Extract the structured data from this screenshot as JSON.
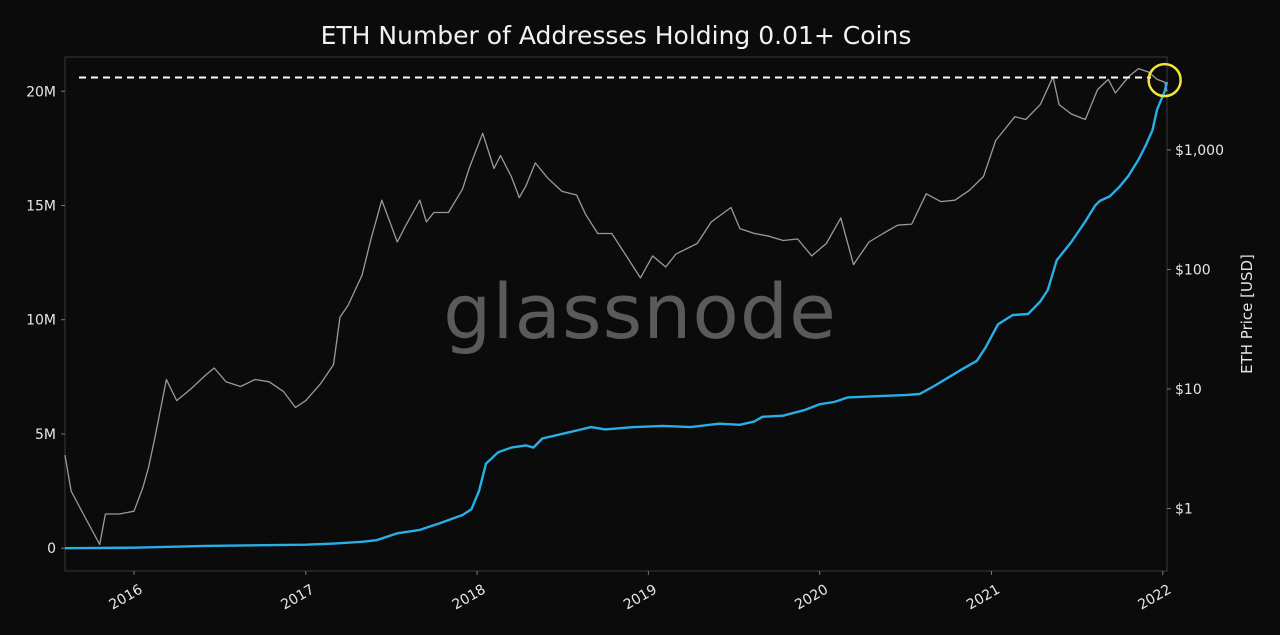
{
  "chart_data": {
    "type": "line",
    "title": "ETH Number of Addresses Holding 0.01+ Coins",
    "watermark": "glassnode",
    "x_ticks": [
      "2016",
      "2017",
      "2018",
      "2019",
      "2020",
      "2021",
      "2022"
    ],
    "x_range": [
      "2015-08-07",
      "2022-01-10"
    ],
    "y_left": {
      "ticks": [
        "0",
        "5M",
        "10M",
        "15M",
        "20M"
      ],
      "tick_values": [
        0,
        5000000,
        10000000,
        15000000,
        20000000
      ],
      "range": [
        -1000000,
        21500000
      ],
      "label": ""
    },
    "y_right": {
      "label": "ETH Price [USD]",
      "scale": "log",
      "ticks": [
        "$1",
        "$10",
        "$100",
        "$1,000"
      ],
      "tick_values": [
        1,
        10,
        100,
        1000
      ],
      "range": [
        0.3,
        6000
      ]
    },
    "reference_line": {
      "value": 20600000,
      "style": "dashed",
      "color": "#ffffff"
    },
    "highlight_circle": {
      "date": "2022-01-05",
      "color": "#f1e63a"
    },
    "series": [
      {
        "axis": "left",
        "color": "#2aaee6",
        "points": [
          [
            "2015-08-07",
            0
          ],
          [
            "2016-01-01",
            20000
          ],
          [
            "2016-06-01",
            100000
          ],
          [
            "2017-01-01",
            150000
          ],
          [
            "2017-03-01",
            200000
          ],
          [
            "2017-05-01",
            280000
          ],
          [
            "2017-06-01",
            350000
          ],
          [
            "2017-07-15",
            650000
          ],
          [
            "2017-09-01",
            800000
          ],
          [
            "2017-10-15",
            1100000
          ],
          [
            "2017-12-01",
            1450000
          ],
          [
            "2017-12-20",
            1700000
          ],
          [
            "2018-01-05",
            2500000
          ],
          [
            "2018-01-20",
            3700000
          ],
          [
            "2018-02-15",
            4200000
          ],
          [
            "2018-03-15",
            4400000
          ],
          [
            "2018-04-15",
            4500000
          ],
          [
            "2018-05-01",
            4400000
          ],
          [
            "2018-05-20",
            4800000
          ],
          [
            "2018-07-01",
            5000000
          ],
          [
            "2018-08-01",
            5150000
          ],
          [
            "2018-09-01",
            5300000
          ],
          [
            "2018-10-01",
            5200000
          ],
          [
            "2018-12-01",
            5300000
          ],
          [
            "2019-02-01",
            5350000
          ],
          [
            "2019-04-01",
            5300000
          ],
          [
            "2019-06-01",
            5450000
          ],
          [
            "2019-07-15",
            5400000
          ],
          [
            "2019-08-15",
            5550000
          ],
          [
            "2019-09-01",
            5750000
          ],
          [
            "2019-10-15",
            5800000
          ],
          [
            "2019-12-01",
            6050000
          ],
          [
            "2020-01-01",
            6300000
          ],
          [
            "2020-02-01",
            6400000
          ],
          [
            "2020-03-01",
            6600000
          ],
          [
            "2020-05-01",
            6650000
          ],
          [
            "2020-07-01",
            6700000
          ],
          [
            "2020-08-01",
            6750000
          ],
          [
            "2020-09-01",
            7100000
          ],
          [
            "2020-11-01",
            7850000
          ],
          [
            "2020-12-01",
            8200000
          ],
          [
            "2020-12-20",
            8800000
          ],
          [
            "2021-01-15",
            9800000
          ],
          [
            "2021-02-15",
            10200000
          ],
          [
            "2021-03-20",
            10250000
          ],
          [
            "2021-04-15",
            10800000
          ],
          [
            "2021-05-01",
            11300000
          ],
          [
            "2021-05-20",
            12600000
          ],
          [
            "2021-06-20",
            13400000
          ],
          [
            "2021-07-20",
            14300000
          ],
          [
            "2021-08-10",
            15000000
          ],
          [
            "2021-08-20",
            15200000
          ],
          [
            "2021-09-10",
            15400000
          ],
          [
            "2021-09-30",
            15800000
          ],
          [
            "2021-10-20",
            16300000
          ],
          [
            "2021-11-10",
            17000000
          ],
          [
            "2021-11-25",
            17600000
          ],
          [
            "2021-12-10",
            18300000
          ],
          [
            "2021-12-20",
            19200000
          ],
          [
            "2022-01-05",
            20000000
          ],
          [
            "2022-01-10",
            20400000
          ]
        ]
      },
      {
        "axis": "right",
        "color": "#9a9a9a",
        "points": [
          [
            "2015-08-07",
            2.8
          ],
          [
            "2015-08-20",
            1.4
          ],
          [
            "2015-09-15",
            0.9
          ],
          [
            "2015-10-20",
            0.5
          ],
          [
            "2015-11-01",
            0.9
          ],
          [
            "2015-12-01",
            0.9
          ],
          [
            "2016-01-01",
            0.95
          ],
          [
            "2016-01-20",
            1.5
          ],
          [
            "2016-02-01",
            2.2
          ],
          [
            "2016-02-15",
            4.0
          ],
          [
            "2016-03-10",
            12.0
          ],
          [
            "2016-04-01",
            8.0
          ],
          [
            "2016-05-01",
            10.0
          ],
          [
            "2016-06-01",
            13.0
          ],
          [
            "2016-06-20",
            15.0
          ],
          [
            "2016-07-15",
            11.5
          ],
          [
            "2016-08-15",
            10.5
          ],
          [
            "2016-09-15",
            12.0
          ],
          [
            "2016-10-15",
            11.5
          ],
          [
            "2016-11-15",
            9.5
          ],
          [
            "2016-12-10",
            7.0
          ],
          [
            "2017-01-01",
            8.0
          ],
          [
            "2017-02-01",
            11.0
          ],
          [
            "2017-03-01",
            16.0
          ],
          [
            "2017-03-15",
            40.0
          ],
          [
            "2017-04-01",
            50.0
          ],
          [
            "2017-05-01",
            90.0
          ],
          [
            "2017-05-20",
            180.0
          ],
          [
            "2017-06-12",
            380.0
          ],
          [
            "2017-07-15",
            170.0
          ],
          [
            "2017-08-01",
            230.0
          ],
          [
            "2017-09-01",
            380.0
          ],
          [
            "2017-09-15",
            250.0
          ],
          [
            "2017-10-01",
            300.0
          ],
          [
            "2017-11-01",
            300.0
          ],
          [
            "2017-12-01",
            470.0
          ],
          [
            "2017-12-15",
            700.0
          ],
          [
            "2018-01-13",
            1380.0
          ],
          [
            "2018-02-06",
            700.0
          ],
          [
            "2018-02-20",
            900.0
          ],
          [
            "2018-03-15",
            600.0
          ],
          [
            "2018-04-01",
            400.0
          ],
          [
            "2018-04-15",
            500.0
          ],
          [
            "2018-05-05",
            780.0
          ],
          [
            "2018-06-01",
            580.0
          ],
          [
            "2018-07-01",
            450.0
          ],
          [
            "2018-08-01",
            420.0
          ],
          [
            "2018-08-20",
            290.0
          ],
          [
            "2018-09-15",
            200.0
          ],
          [
            "2018-10-15",
            200.0
          ],
          [
            "2018-11-15",
            130.0
          ],
          [
            "2018-12-15",
            85.0
          ],
          [
            "2019-01-10",
            130.0
          ],
          [
            "2019-02-07",
            105.0
          ],
          [
            "2019-03-01",
            135.0
          ],
          [
            "2019-04-15",
            165.0
          ],
          [
            "2019-05-15",
            250.0
          ],
          [
            "2019-06-26",
            330.0
          ],
          [
            "2019-07-15",
            220.0
          ],
          [
            "2019-08-15",
            200.0
          ],
          [
            "2019-09-15",
            190.0
          ],
          [
            "2019-10-15",
            175.0
          ],
          [
            "2019-11-15",
            180.0
          ],
          [
            "2019-12-15",
            130.0
          ],
          [
            "2020-01-15",
            165.0
          ],
          [
            "2020-02-15",
            270.0
          ],
          [
            "2020-03-13",
            110.0
          ],
          [
            "2020-04-15",
            170.0
          ],
          [
            "2020-05-15",
            200.0
          ],
          [
            "2020-06-15",
            235.0
          ],
          [
            "2020-07-15",
            240.0
          ],
          [
            "2020-08-15",
            430.0
          ],
          [
            "2020-09-15",
            370.0
          ],
          [
            "2020-10-15",
            380.0
          ],
          [
            "2020-11-15",
            460.0
          ],
          [
            "2020-12-15",
            600.0
          ],
          [
            "2021-01-10",
            1200.0
          ],
          [
            "2021-02-20",
            1900.0
          ],
          [
            "2021-03-15",
            1800.0
          ],
          [
            "2021-04-15",
            2400.0
          ],
          [
            "2021-05-12",
            4100.0
          ],
          [
            "2021-05-25",
            2400.0
          ],
          [
            "2021-06-20",
            2000.0
          ],
          [
            "2021-07-20",
            1800.0
          ],
          [
            "2021-08-15",
            3200.0
          ],
          [
            "2021-09-07",
            3900.0
          ],
          [
            "2021-09-22",
            3000.0
          ],
          [
            "2021-10-20",
            4100.0
          ],
          [
            "2021-11-10",
            4800.0
          ],
          [
            "2021-12-01",
            4500.0
          ],
          [
            "2021-12-20",
            3900.0
          ],
          [
            "2022-01-05",
            3700.0
          ],
          [
            "2022-01-10",
            3100.0
          ]
        ]
      }
    ]
  }
}
